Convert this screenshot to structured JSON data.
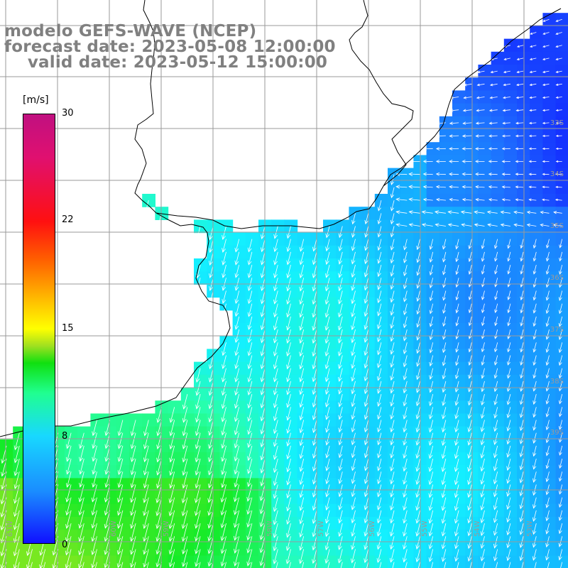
{
  "title": {
    "line1": "modelo GEFS-WAVE (NCEP)",
    "line2": "forecast date: 2023-05-08 12:00:00",
    "line3": "    valid date: 2023-05-12 15:00:00"
  },
  "colorbar": {
    "unit": "[m/s]",
    "ticks": [
      "30",
      "22",
      "15",
      "8",
      "0"
    ],
    "min": 0,
    "max": 30
  },
  "grid": {
    "lat_labels": [
      "33S",
      "34S",
      "35S",
      "36S",
      "37S",
      "38S",
      "39S"
    ],
    "lon_labels": [
      "61W",
      "60W",
      "59W",
      "58W",
      "57W",
      "56W",
      "55W",
      "54W",
      "53W"
    ]
  },
  "colors": {
    "land": "#ffffff",
    "coast": "#000000",
    "gridline": "#9a9a9a",
    "arrow": "#ffffff",
    "title": "#808080"
  }
}
